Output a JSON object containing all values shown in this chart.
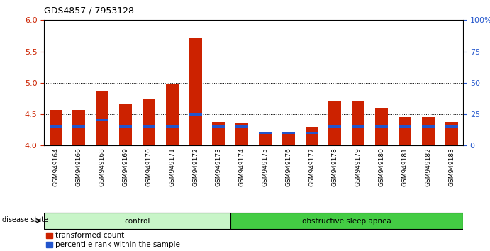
{
  "title": "GDS4857 / 7953128",
  "samples": [
    "GSM949164",
    "GSM949166",
    "GSM949168",
    "GSM949169",
    "GSM949170",
    "GSM949171",
    "GSM949172",
    "GSM949173",
    "GSM949174",
    "GSM949175",
    "GSM949176",
    "GSM949177",
    "GSM949178",
    "GSM949179",
    "GSM949180",
    "GSM949181",
    "GSM949182",
    "GSM949183"
  ],
  "red_values": [
    4.57,
    4.57,
    4.87,
    4.66,
    4.75,
    4.97,
    5.72,
    4.38,
    4.35,
    4.22,
    4.22,
    4.3,
    4.72,
    4.71,
    4.6,
    4.45,
    4.45,
    4.38
  ],
  "blue_percentiles": [
    15,
    15,
    20,
    15,
    15,
    15,
    25,
    15,
    15,
    10,
    10,
    10,
    15,
    15,
    15,
    15,
    15,
    15
  ],
  "ylim_left": [
    4.0,
    6.0
  ],
  "ylim_right": [
    0,
    100
  ],
  "yticks_left": [
    4.0,
    4.5,
    5.0,
    5.5,
    6.0
  ],
  "yticks_right": [
    0,
    25,
    50,
    75,
    100
  ],
  "ytick_labels_right": [
    "0",
    "25",
    "50",
    "75",
    "100%"
  ],
  "grid_lines": [
    4.5,
    5.0,
    5.5
  ],
  "groups": [
    {
      "label": "control",
      "start": 0,
      "end": 8,
      "color": "#c8f5c8"
    },
    {
      "label": "obstructive sleep apnea",
      "start": 8,
      "end": 18,
      "color": "#44cc44"
    }
  ],
  "bar_color_red": "#cc2200",
  "bar_color_blue": "#2255cc",
  "bar_width": 0.55,
  "background_color": "#ffffff",
  "tick_label_color_left": "#cc2200",
  "tick_label_color_right": "#2255cc",
  "legend_items": [
    {
      "color": "#cc2200",
      "label": "transformed count"
    },
    {
      "color": "#2255cc",
      "label": "percentile rank within the sample"
    }
  ],
  "disease_state_label": "disease state"
}
